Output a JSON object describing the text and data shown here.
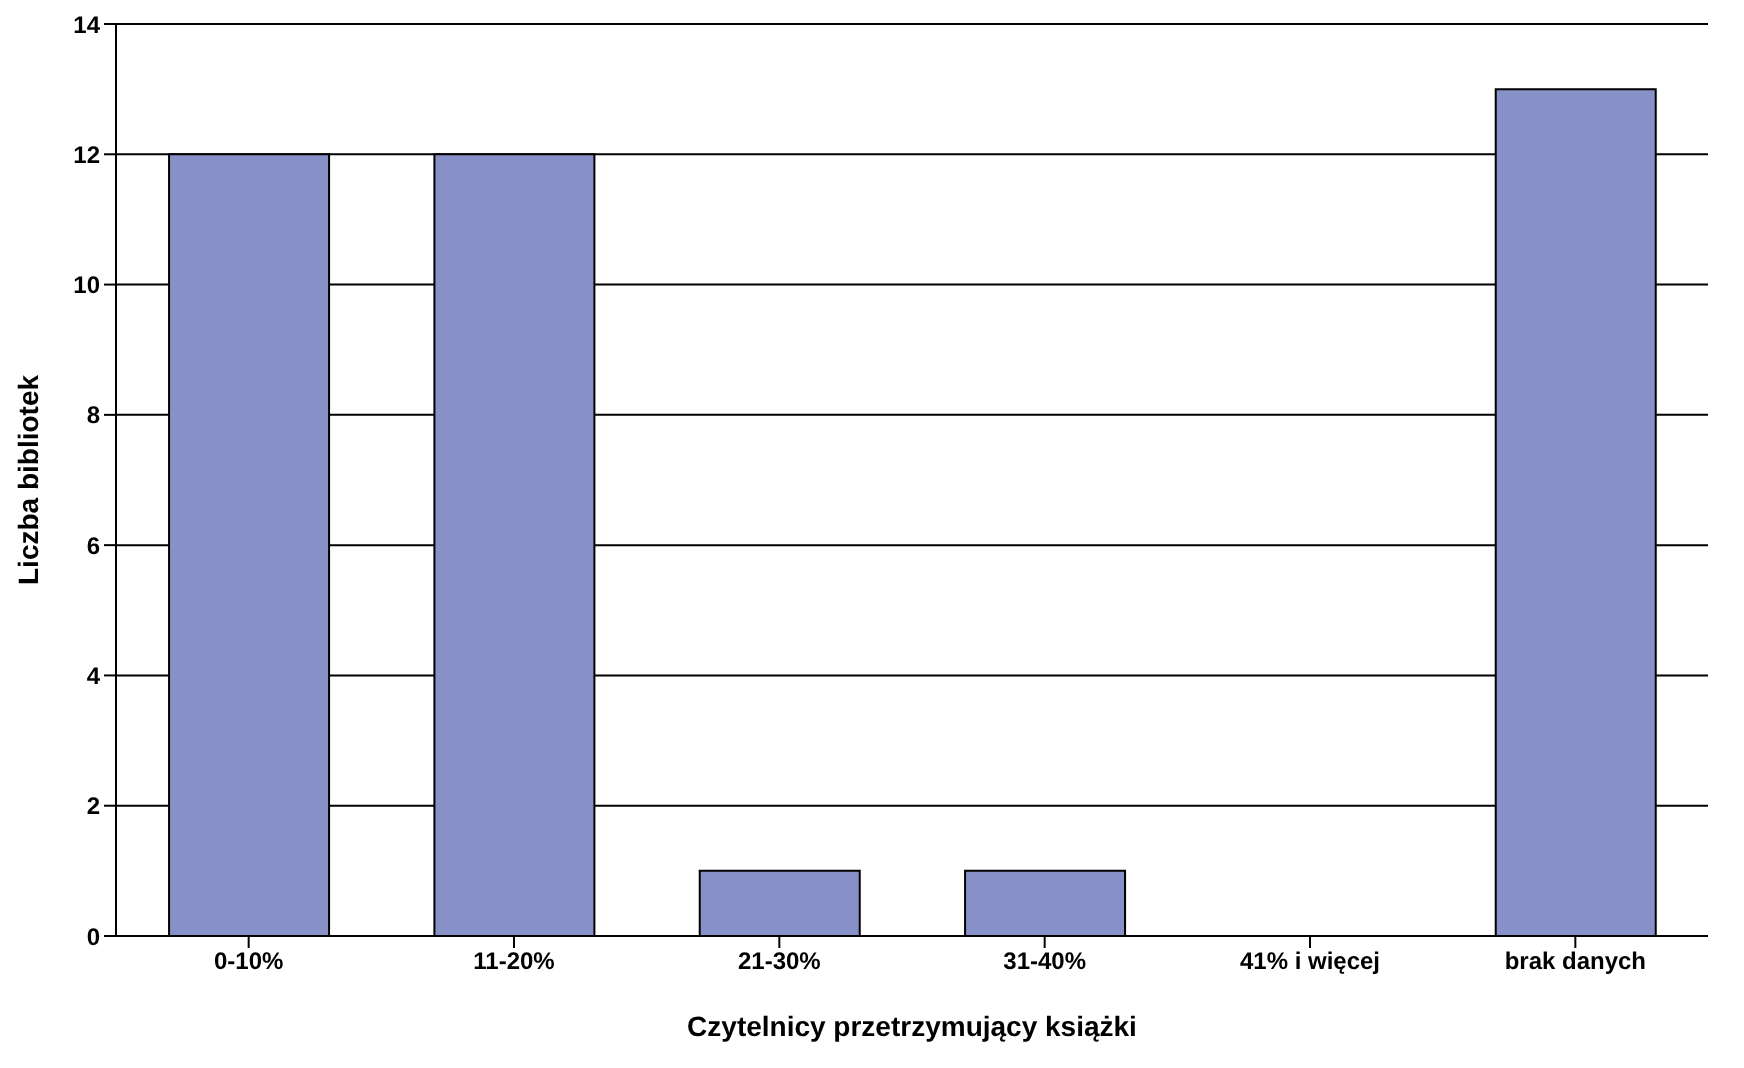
{
  "chart_data": {
    "type": "bar",
    "xlabel": "Czytelnicy przetrzymujący książki",
    "ylabel": "Liczba bibliotek",
    "categories": [
      "0-10%",
      "11-20%",
      "21-30%",
      "31-40%",
      "41% i więcej",
      "brak danych"
    ],
    "values": [
      12,
      12,
      1,
      1,
      0,
      13
    ],
    "color": "#8890c8",
    "ylim": [
      0,
      14
    ],
    "yticks": [
      0,
      2,
      4,
      6,
      8,
      10,
      12,
      14
    ],
    "grid": "y"
  }
}
